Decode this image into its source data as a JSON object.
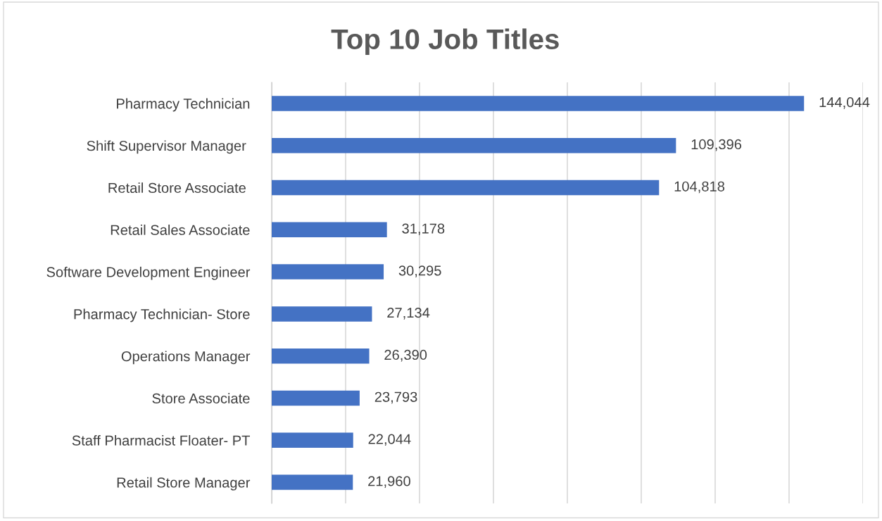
{
  "chart_data": {
    "type": "bar",
    "orientation": "horizontal",
    "title": "Top 10 Job Titles",
    "categories": [
      "Pharmacy Technician",
      "Shift Supervisor Manager ",
      "Retail Store Associate ",
      "Retail Sales Associate",
      "Software Development Engineer",
      "Pharmacy Technician- Store",
      "Operations Manager",
      "Store Associate",
      "Staff Pharmacist Floater- PT",
      "Retail Store Manager"
    ],
    "values": [
      144044,
      109396,
      104818,
      31178,
      30295,
      27134,
      26390,
      23793,
      22044,
      21960
    ],
    "value_labels": [
      "144,044",
      "109,396",
      "104,818",
      "31,178",
      "30,295",
      "27,134",
      "26,390",
      "23,793",
      "22,044",
      "21,960"
    ],
    "color": "#4472c4",
    "xlim": [
      0,
      160000
    ],
    "xticks": [
      {
        "value": 0,
        "label": null
      },
      {
        "value": 20000,
        "label": null
      },
      {
        "value": 40000,
        "label": null
      },
      {
        "value": 60000,
        "label": null
      },
      {
        "value": 80000,
        "label": null
      },
      {
        "value": 100000,
        "label": null
      },
      {
        "value": 120000,
        "label": null
      },
      {
        "value": 140000,
        "label": null
      },
      {
        "value": 160000,
        "label": null
      }
    ],
    "grid": "x",
    "legend": false
  }
}
